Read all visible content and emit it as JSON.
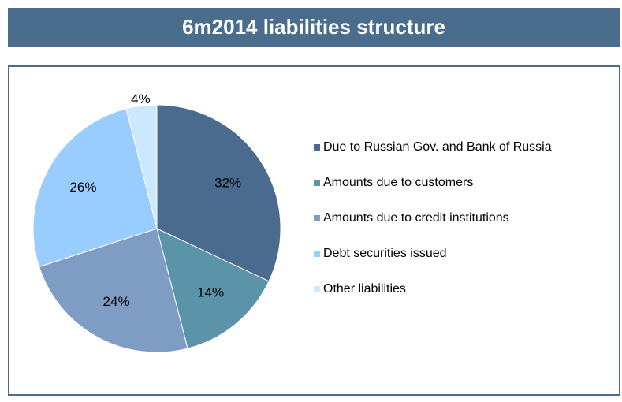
{
  "chart_data": {
    "type": "pie",
    "title": "6m2014 liabilities structure",
    "categories": [
      "Due to Russian Gov. and Bank of Russia",
      "Amounts due to customers",
      "Amounts due to credit institutions",
      "Debt securities issued",
      "Other liabilities"
    ],
    "values": [
      32,
      14,
      24,
      26,
      4
    ],
    "value_labels": [
      "32%",
      "14%",
      "24%",
      "26%",
      "4%"
    ],
    "colors": [
      "#4a6b8e",
      "#5b93a8",
      "#7f9cc4",
      "#99ccff",
      "#cce8ff"
    ],
    "legend": "right"
  }
}
